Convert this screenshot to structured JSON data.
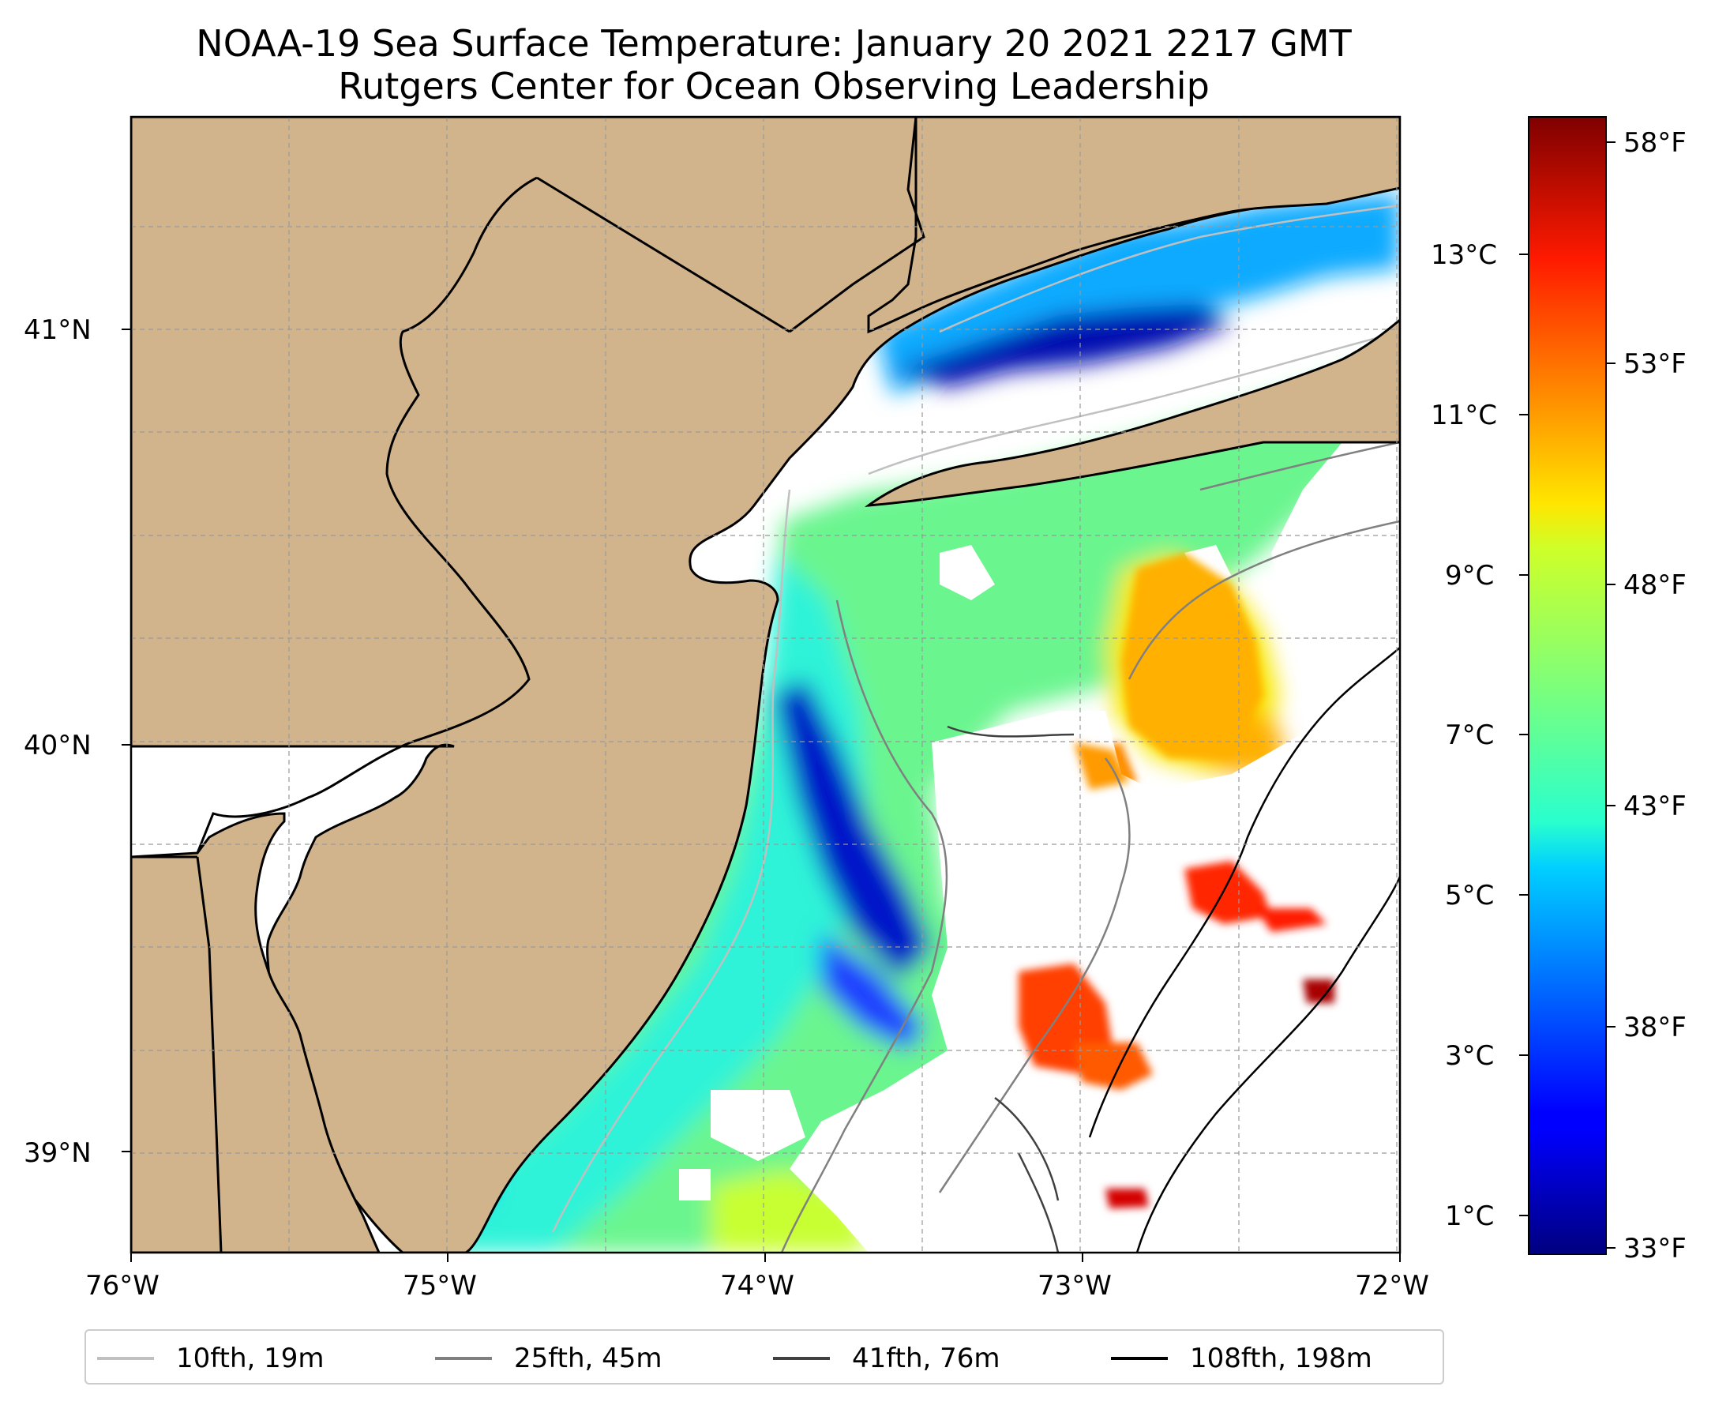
{
  "title": {
    "line1": "NOAA-19 Sea Surface Temperature: January 20 2021 2217 GMT",
    "line2": "Rutgers Center for Ocean Observing Leadership"
  },
  "map": {
    "lon_range": [
      -76,
      -72
    ],
    "lat_range": [
      38.75,
      41.52
    ],
    "land_color": "#d2b48c",
    "ocean_nodata_color": "#ffffff",
    "gridlines": "dashed gray",
    "lon_ticks": [
      "76°W",
      "75°W",
      "74°W",
      "73°W",
      "72°W"
    ],
    "lat_ticks": [
      "41°N",
      "40°N",
      "39°N"
    ]
  },
  "colorbar": {
    "colormap": "jet",
    "celsius_ticks": [
      "13°C",
      "11°C",
      "9°C",
      "7°C",
      "5°C",
      "3°C",
      "1°C"
    ],
    "fahrenheit_ticks": [
      "58°F",
      "53°F",
      "48°F",
      "43°F",
      "38°F",
      "33°F"
    ]
  },
  "legend": {
    "items": [
      {
        "label": "10fth, 19m",
        "color": "#c0c0c0"
      },
      {
        "label": "25fth, 45m",
        "color": "#808080"
      },
      {
        "label": "41fth, 76m",
        "color": "#404040"
      },
      {
        "label": "108fth, 198m",
        "color": "#000000"
      }
    ]
  }
}
